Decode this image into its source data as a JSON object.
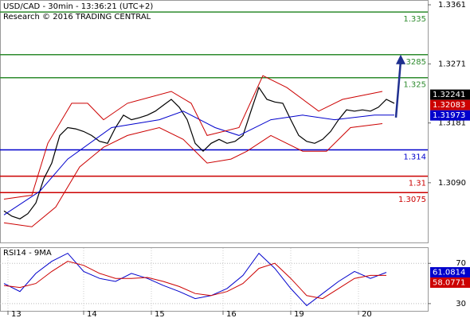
{
  "chart_data": [
    {
      "type": "line",
      "title": "USD/CAD - 30min - 13:36:21 (UTC+2)",
      "subtitle": "Research © 2016 TRADING CENTRAL",
      "xlim": [
        -0.5,
        53.2
      ],
      "ylim": [
        1.2999,
        1.33683
      ],
      "yticks": [
        1.3361,
        1.3271,
        1.3181,
        {
          "value": 1.309,
          "label": "1.3090"
        }
      ],
      "series": [
        {
          "color": "#000000",
          "x": [
            0,
            1,
            2,
            3,
            4,
            5,
            6,
            7,
            8,
            9,
            10,
            11,
            12,
            13,
            14,
            15,
            16,
            17,
            18,
            19,
            20,
            21,
            22,
            23,
            24,
            25,
            26,
            27,
            28,
            29,
            30,
            31,
            32,
            33,
            34,
            35,
            36,
            37,
            38,
            39,
            40,
            41,
            42,
            43,
            44,
            45,
            46,
            47,
            48,
            49
          ],
          "values": [
            1.3047,
            1.3039,
            1.3035,
            1.3043,
            1.3059,
            1.3096,
            1.312,
            1.3162,
            1.3174,
            1.3172,
            1.3168,
            1.3162,
            1.3153,
            1.315,
            1.3174,
            1.3193,
            1.3186,
            1.3189,
            1.3193,
            1.3199,
            1.3208,
            1.3217,
            1.3205,
            1.3186,
            1.315,
            1.3138,
            1.315,
            1.3156,
            1.315,
            1.3153,
            1.3162,
            1.3199,
            1.3235,
            1.3217,
            1.3213,
            1.3211,
            1.3186,
            1.3162,
            1.3153,
            1.315,
            1.3156,
            1.3168,
            1.3186,
            1.3201,
            1.3199,
            1.3201,
            1.3199,
            1.3205,
            1.3217,
            1.3211
          ]
        },
        {
          "color": "#0000cc",
          "x": [
            0,
            4.5,
            8,
            13.5,
            19.5,
            22.5,
            26.5,
            29.5,
            33.5,
            37.5,
            41.5,
            46.5,
            49
          ],
          "values": [
            1.3041,
            1.3077,
            1.3126,
            1.3174,
            1.3186,
            1.3199,
            1.3174,
            1.3162,
            1.3186,
            1.3193,
            1.3186,
            1.3193,
            1.3193
          ]
        },
        {
          "color": "#cc0000",
          "x": [
            0,
            3.5,
            5.5,
            8.5,
            10.5,
            12.5,
            15.5,
            21,
            23.5,
            25.5,
            29.5,
            32.5,
            35.5,
            39.5,
            42.5,
            47.5
          ],
          "values": [
            1.3065,
            1.3071,
            1.315,
            1.3211,
            1.3211,
            1.3186,
            1.3211,
            1.3229,
            1.3211,
            1.3162,
            1.3174,
            1.3253,
            1.3235,
            1.3199,
            1.3217,
            1.3229
          ]
        },
        {
          "color": "#cc0000",
          "x": [
            0,
            3.5,
            6.5,
            9.5,
            12.5,
            15.5,
            19.5,
            22.5,
            25.5,
            28.5,
            30.5,
            33.5,
            37.5,
            40.5,
            43.5,
            47.5
          ],
          "values": [
            1.3029,
            1.3023,
            1.3053,
            1.3114,
            1.3144,
            1.3162,
            1.3174,
            1.3156,
            1.312,
            1.3126,
            1.3138,
            1.3162,
            1.3138,
            1.3138,
            1.3174,
            1.318
          ]
        }
      ],
      "levels": [
        {
          "value": 1.335,
          "color": "#2e8b2e"
        },
        {
          "value": 1.3285,
          "color": "#2e8b2e"
        },
        {
          "value": 1.325,
          "color": "#2e8b2e"
        },
        {
          "value": 1.314,
          "color": "#0000cc"
        },
        {
          "value": 1.31,
          "color": "#cc0000"
        },
        {
          "value": 1.3075,
          "color": "#cc0000"
        }
      ],
      "markers": [
        {
          "value": 1.32241,
          "color": "#000000"
        },
        {
          "value": 1.32083,
          "color": "#cc0000"
        },
        {
          "value": 1.31973,
          "color": "#0000cc"
        }
      ]
    },
    {
      "type": "line",
      "title": "RSI14 - 9MA",
      "xlim": [
        -0.5,
        53.2
      ],
      "xticks": [
        {
          "value": 0.5,
          "label": "13"
        },
        {
          "value": 10,
          "label": "14"
        },
        {
          "value": 18.5,
          "label": "15"
        },
        {
          "value": 27.5,
          "label": "16"
        },
        {
          "value": 36,
          "label": "19"
        },
        {
          "value": 44.5,
          "label": "20"
        }
      ],
      "ylim": [
        22.8,
        85.2
      ],
      "yticks": [
        70,
        30
      ],
      "series": [
        {
          "color": "#0000cc",
          "x": [
            0,
            2,
            4,
            6,
            8,
            10,
            12,
            14,
            16,
            18,
            20,
            22,
            24,
            26,
            28,
            30,
            32,
            34,
            36,
            38,
            40,
            42,
            44,
            46,
            48
          ],
          "values": [
            50,
            42,
            60,
            72,
            80,
            62,
            55,
            52,
            60,
            55,
            48,
            42,
            35,
            38,
            45,
            58,
            80,
            65,
            45,
            28,
            40,
            52,
            62,
            55,
            61
          ]
        },
        {
          "color": "#cc0000",
          "x": [
            0,
            2,
            4,
            6,
            8,
            10,
            12,
            14,
            16,
            18,
            20,
            22,
            24,
            26,
            28,
            30,
            32,
            34,
            36,
            38,
            40,
            42,
            44,
            46,
            48
          ],
          "values": [
            48,
            46,
            50,
            62,
            72,
            68,
            60,
            55,
            55,
            56,
            52,
            47,
            40,
            38,
            42,
            50,
            65,
            70,
            55,
            38,
            35,
            45,
            55,
            58,
            58
          ]
        }
      ],
      "markers": [
        {
          "value": 61.0814,
          "color": "#0000cc"
        },
        {
          "value": 58.0771,
          "color": "#cc0000"
        }
      ]
    }
  ]
}
